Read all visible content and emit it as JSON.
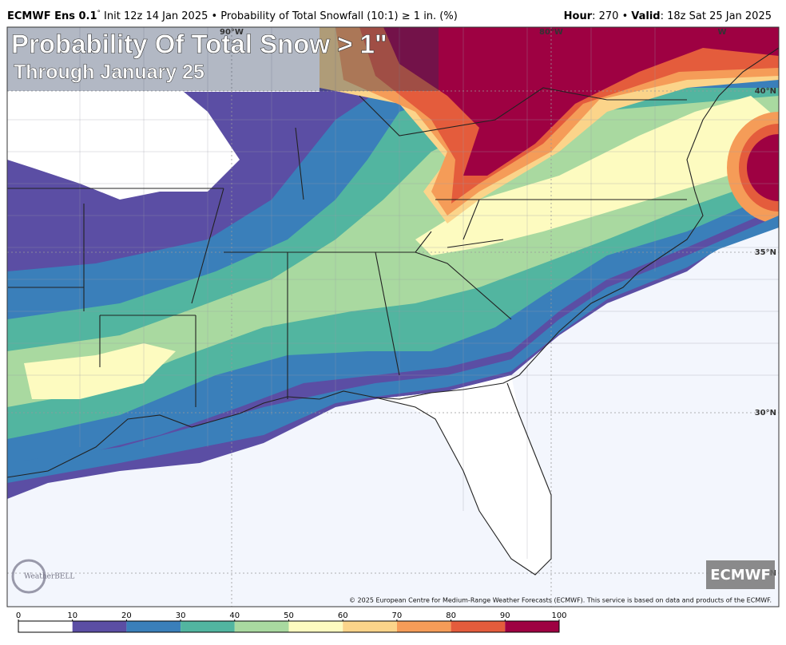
{
  "header": {
    "model": "ECMWF Ens 0.1",
    "model_degree": "°",
    "info": "Init 12z 14 Jan 2025 • Probability of Total Snowfall (10:1) ≥ 1 in. (%)",
    "hour_label": "Hour",
    "hour_text": ": 270 •",
    "valid_label": "Valid",
    "valid_text": ": 18z Sat 25 Jan 2025"
  },
  "map": {
    "title": "Probability Of Total Snow > 1\"",
    "subtitle": "Through January 25",
    "lat_labels": [
      "40°N",
      "35°N",
      "30°N",
      "N"
    ],
    "lon_labels": [
      "90°W",
      "80°W",
      "W"
    ],
    "badge": "ECMWF",
    "logo": "WeatherBELL",
    "copyright": "© 2025 European Centre for Medium-Range Weather Forecasts (ECMWF). This service is based on data and products of the ECMWF."
  },
  "colorbar": {
    "ticks": [
      0,
      10,
      20,
      30,
      40,
      50,
      60,
      70,
      80,
      90,
      100
    ],
    "colors": [
      "#ffffff",
      "#5b4ea4",
      "#3a7fba",
      "#52b5a0",
      "#a9d9a0",
      "#fdfbc0",
      "#fbd48a",
      "#f59c58",
      "#e45c3c",
      "#9e0142"
    ]
  }
}
